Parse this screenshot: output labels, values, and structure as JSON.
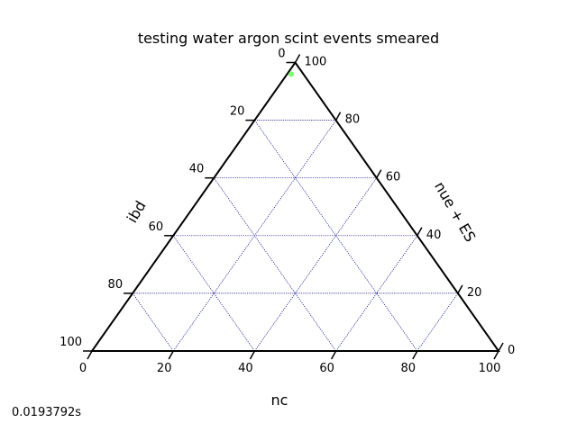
{
  "chart_data": {
    "type": "scatter",
    "subtype": "ternary",
    "title": "testing water argon scint events smeared",
    "axes": {
      "bottom": {
        "label": "nc",
        "ticks": [
          0,
          20,
          40,
          60,
          80,
          100
        ]
      },
      "left": {
        "label": "ibd",
        "ticks": [
          0,
          20,
          40,
          60,
          80,
          100
        ]
      },
      "right": {
        "label": "nue + ES",
        "ticks": [
          0,
          20,
          40,
          60,
          80,
          100
        ]
      }
    },
    "scale": 100,
    "grid": true,
    "grid_color": "#00008b",
    "point_color": "#7CFC6E",
    "points": [
      {
        "nc": 1,
        "ibd": 3,
        "nue_es": 96
      }
    ]
  },
  "footer": {
    "timing": "0.0193792s"
  }
}
